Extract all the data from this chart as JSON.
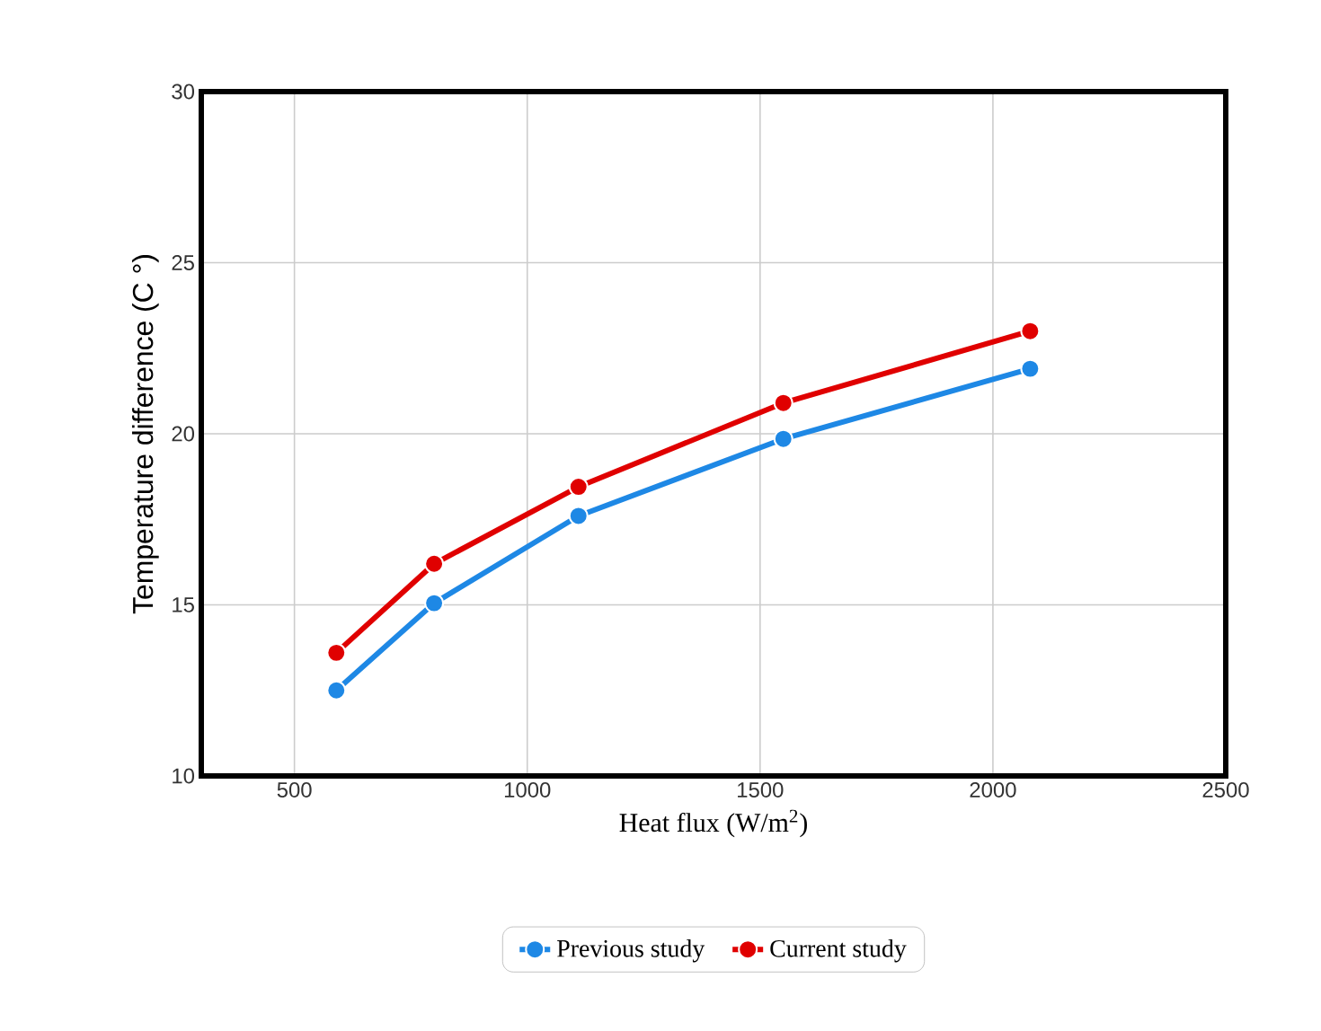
{
  "chart_data": {
    "type": "line",
    "xlabel": "Heat flux (W/m$^{2}$)",
    "ylabel": "Temperature difference (C °)",
    "xlim": [
      300,
      2500
    ],
    "xticks": [
      500,
      1000,
      1500,
      2000,
      2500
    ],
    "ylim": [
      10,
      30
    ],
    "yticks": [
      10,
      15,
      20,
      25,
      30
    ],
    "grid": true,
    "legend": "bottom",
    "marker": "circle",
    "line_style": "solid",
    "series": [
      {
        "name": "Previous study",
        "color": "#1e88e5",
        "x": [
          590,
          800,
          1110,
          1550,
          2080
        ],
        "values": [
          12.5,
          15.05,
          17.6,
          19.85,
          21.9
        ]
      },
      {
        "name": "Current study",
        "color": "#e00000",
        "x": [
          590,
          800,
          1110,
          1550,
          2080
        ],
        "values": [
          13.6,
          16.2,
          18.45,
          20.9,
          23.0
        ]
      }
    ]
  }
}
